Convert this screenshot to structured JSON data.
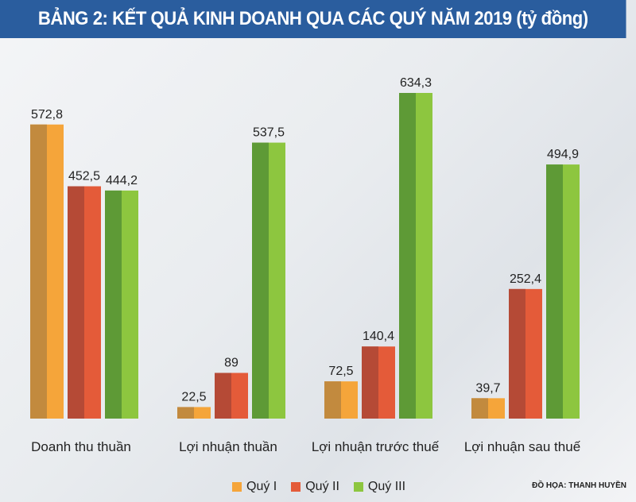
{
  "title": "BẢNG 2: KẾT QUẢ KINH DOANH QUA CÁC QUÝ NĂM 2019 (tỷ đồng)",
  "credit": "ĐỒ HỌA: THANH HUYỀN",
  "chart_data": {
    "type": "bar",
    "title": "BẢNG 2: KẾT QUẢ KINH DOANH QUA CÁC QUÝ NĂM 2019 (tỷ đồng)",
    "categories": [
      "Doanh thu thuần",
      "Lợi nhuận thuần",
      "Lợi nhuận trước thuế",
      "Lợi nhuận sau thuế"
    ],
    "series": [
      {
        "name": "Quý I",
        "values": [
          572.8,
          22.5,
          72.5,
          39.7
        ],
        "labels": [
          "572,8",
          "22,5",
          "72,5",
          "39,7"
        ],
        "color": "#f5a53a",
        "shade": "#c28a3e"
      },
      {
        "name": "Quý II",
        "values": [
          452.5,
          89,
          140.4,
          252.4
        ],
        "labels": [
          "452,5",
          "89",
          "140,4",
          "252,4"
        ],
        "color": "#e45b39",
        "shade": "#b54a36"
      },
      {
        "name": "Quý III",
        "values": [
          444.2,
          537.5,
          634.3,
          494.9
        ],
        "labels": [
          "444,2",
          "537,5",
          "634,3",
          "494,9"
        ],
        "color": "#8dc63f",
        "shade": "#5e9a36"
      }
    ],
    "ylim": [
      0,
      650
    ],
    "grid": false,
    "legend": "bottom"
  }
}
